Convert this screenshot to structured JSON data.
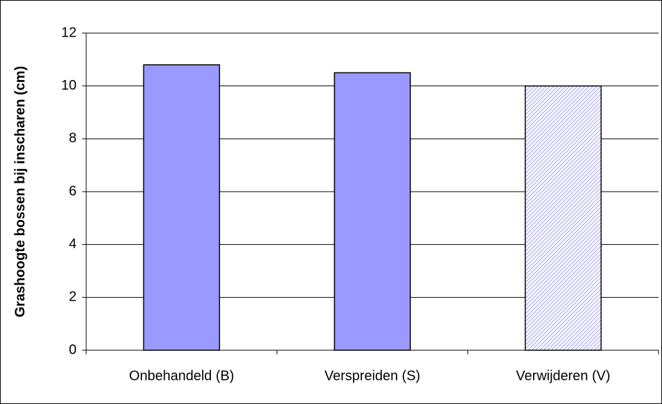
{
  "chart_data": {
    "type": "bar",
    "y_label": "Grashoogte bossen bij inscharen (cm)",
    "categories": [
      "Onbehandeld (B)",
      "Verspreiden (S)",
      "Verwijderen (V)"
    ],
    "values": [
      10.8,
      10.5,
      10.0
    ],
    "colors": [
      "#9999ff",
      "#9999ff",
      "#9999ff"
    ],
    "hatched": [
      false,
      false,
      true
    ],
    "ylim": [
      0,
      12
    ],
    "yticks": [
      0,
      2,
      4,
      6,
      8,
      10,
      12
    ],
    "grid": true
  }
}
